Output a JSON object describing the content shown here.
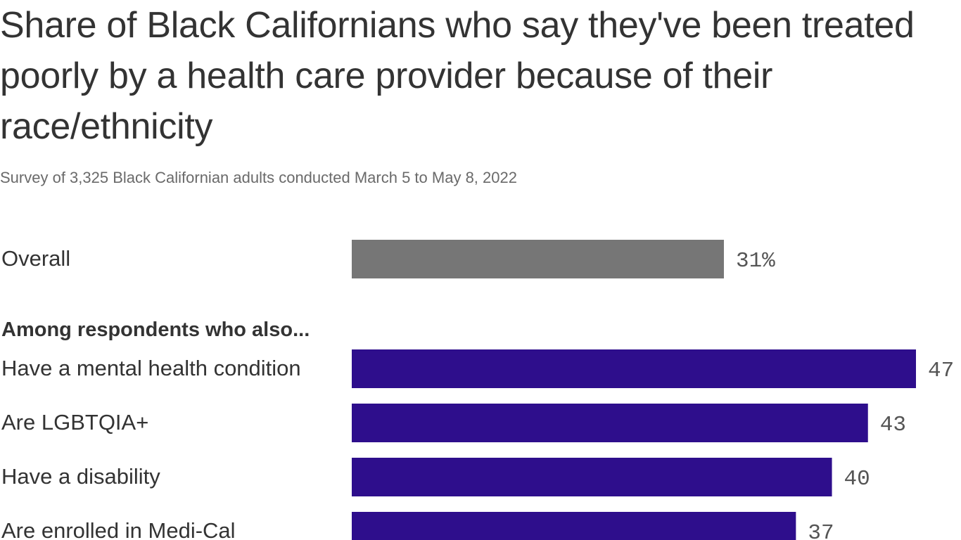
{
  "header": {
    "title": "Share of Black Californians who say they've been treated poorly by a health care provider because of their race/ethnicity",
    "subtitle": "Survey of 3,325 Black Californian adults conducted March 5 to May 8, 2022"
  },
  "colors": {
    "overall_bar": "#767676",
    "group_bar": "#2e0e8c"
  },
  "chart_data": {
    "type": "bar",
    "orientation": "horizontal",
    "title": "Share of Black Californians who say they've been treated poorly by a health care provider because of their race/ethnicity",
    "subtitle": "Survey of 3,325 Black Californian adults conducted March 5 to May 8, 2022",
    "group_heading": "Among respondents who also...",
    "unit": "%",
    "grid": false,
    "categories": [
      "Overall",
      "Have a mental health condition",
      "Are LGBTQIA+",
      "Have a disability",
      "Are enrolled in Medi-Cal"
    ],
    "values": [
      31,
      47,
      43,
      40,
      37
    ],
    "value_labels": [
      "31%",
      "47",
      "43",
      "40",
      "37"
    ],
    "xlim": [
      0,
      47
    ]
  }
}
